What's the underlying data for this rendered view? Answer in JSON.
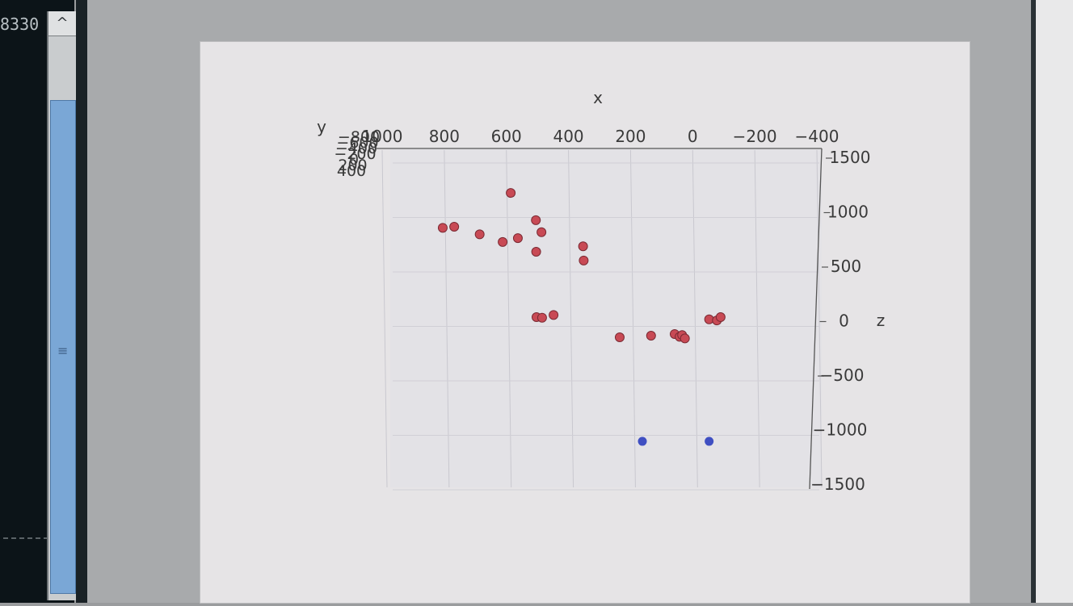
{
  "terminal": {
    "text": "8330",
    "scroll_up_glyph": "^",
    "grip_glyph": "≡"
  },
  "chart_data": {
    "type": "scatter",
    "title": "",
    "xlabel": "x",
    "ylabel": "y",
    "zlabel": "z",
    "x_ticks": [
      "1000",
      "800",
      "600",
      "400",
      "200",
      "0",
      "−200",
      "−400"
    ],
    "y_ticks_overlapping": [
      "−800",
      "−600",
      "−400",
      "−200",
      "0",
      "200",
      "400"
    ],
    "z_ticks": [
      "1500",
      "1000",
      "500",
      "0",
      "−500",
      "−1000",
      "−1500"
    ],
    "xlim": [
      1000,
      -400
    ],
    "zlim": [
      1500,
      -1500
    ],
    "grid": true,
    "series": [
      {
        "color": "#c84a55",
        "points": [
          {
            "x": 805,
            "z": 905
          },
          {
            "x": 768,
            "z": 915
          },
          {
            "x": 686,
            "z": 845
          },
          {
            "x": 612,
            "z": 775
          },
          {
            "x": 586,
            "z": 1225
          },
          {
            "x": 563,
            "z": 810
          },
          {
            "x": 505,
            "z": 975
          },
          {
            "x": 504,
            "z": 685
          },
          {
            "x": 487,
            "z": 865
          },
          {
            "x": 353,
            "z": 735
          },
          {
            "x": 351,
            "z": 605
          },
          {
            "x": 503,
            "z": 85
          },
          {
            "x": 485,
            "z": 80
          },
          {
            "x": 448,
            "z": 105
          },
          {
            "x": 235,
            "z": -100
          },
          {
            "x": 134,
            "z": -85
          },
          {
            "x": 58,
            "z": -70
          },
          {
            "x": 42,
            "z": -95
          },
          {
            "x": 34,
            "z": -80
          },
          {
            "x": 25,
            "z": -110
          },
          {
            "x": -53,
            "z": 65
          },
          {
            "x": -78,
            "z": 55
          },
          {
            "x": -90,
            "z": 85
          }
        ]
      },
      {
        "color": "#3f4fc2",
        "points": [
          {
            "x": 162,
            "z": -1055
          },
          {
            "x": -53,
            "z": -1055
          }
        ]
      }
    ]
  }
}
